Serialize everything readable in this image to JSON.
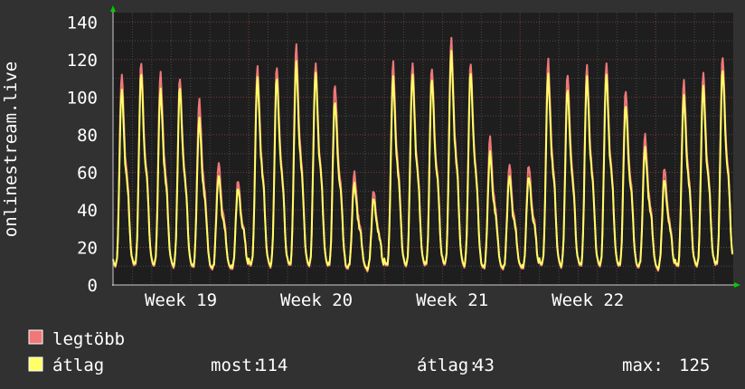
{
  "chart_data": {
    "type": "line",
    "ylabel": "onlinestream.live",
    "ylim": [
      0,
      145
    ],
    "y_ticks": [
      "0",
      "20",
      "40",
      "60",
      "80",
      "100",
      "120",
      "140"
    ],
    "x_tick_labels": [
      "Week 19",
      "Week 20",
      "Week 21",
      "Week 22"
    ],
    "grid": true,
    "colors": {
      "max_series": "#f07878",
      "avg_series": "#ffff66"
    },
    "series": [
      {
        "name": "legtöbb",
        "color": "#f07878",
        "daily_peaks": [
          112,
          119,
          113,
          110,
          98,
          65,
          56,
          116,
          116,
          127,
          118,
          107,
          60,
          50,
          118,
          118,
          116,
          131,
          118,
          78,
          64,
          64,
          120,
          112,
          116,
          118,
          104,
          80,
          62,
          108,
          113,
          122
        ]
      },
      {
        "name": "átlag",
        "color": "#ffff66",
        "daily_peaks": [
          104,
          113,
          104,
          105,
          88,
          58,
          52,
          110,
          110,
          118,
          113,
          98,
          54,
          46,
          110,
          112,
          110,
          124,
          113,
          70,
          58,
          58,
          112,
          104,
          110,
          112,
          96,
          73,
          56,
          100,
          106,
          115
        ]
      }
    ]
  },
  "legend": {
    "items": [
      {
        "label": "legtöbb",
        "color": "#f07878"
      },
      {
        "label": "átlag",
        "color": "#ffff66"
      }
    ],
    "stats": {
      "most_label": "most:",
      "most_value": "114",
      "atlag_label": "átlag:",
      "atlag_value": "43",
      "max_label": "max:",
      "max_value": "125"
    }
  }
}
